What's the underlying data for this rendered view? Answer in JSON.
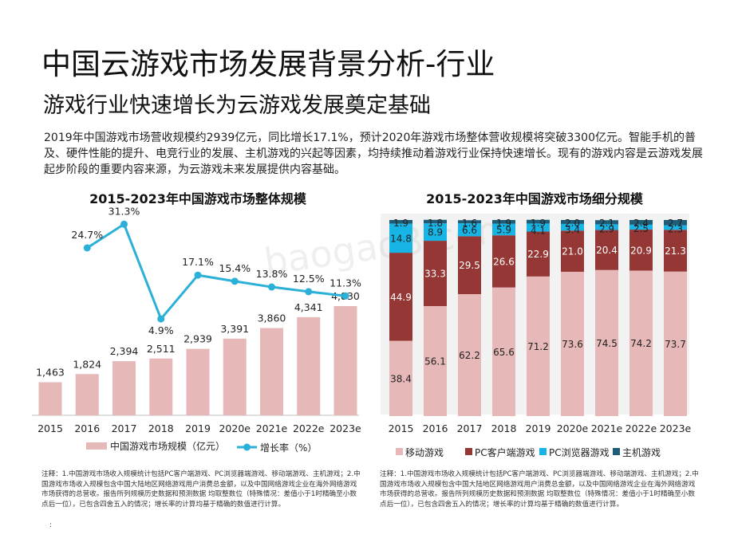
{
  "header": {
    "title": "中国云游戏市场发展背景分析-行业",
    "subtitle": "游戏行业快速增长为云游戏发展奠定基础",
    "intro": "2019年中国游戏市场营收规模约2939亿元，同比增长17.1%，预计2020年游戏市场整体营收规模将突破3300亿元。智能手机的普及、硬件性能的提升、电竞行业的发展、主机游戏的兴起等因素，均持续推动着游戏行业保持快速增长。现有的游戏内容是云游戏发展起步阶段的重要内容来源，为云游戏未来发展提供内容基础。"
  },
  "watermark": "baogao8.com",
  "notes": {
    "left": "注释：1.中国游戏市场收入规模统计包括PC客户端游戏、PC浏览器端游戏、移动端游戏、主机游戏；2.中国游戏市场收入规模包含中国大陆地区网络游戏用户消费总金额，以及中国网络游戏企业在海外网络游戏市场获得的总营收。报告所列规模历史数据和预测数据 均取整数位（特殊情况：差值小于1时精确至小数点后一位），已包含四舍五入的情况；增长率的计算均基于精确的数值进行计算。",
    "left_tail": ":",
    "right": "注释：1.中国游戏市场收入规模统计包括PC客户端游戏、PC浏览器端游戏、移动端游戏、主机游戏；2.中国游戏市场收入规模包含中国大陆地区网络游戏用户消费总金额，以及中国网络游戏企业在海外网络游戏市场获得的总营收。报告所列规模历史数据和预测数据 均取整数位（特殊情况：差值小于1时精确至小数点后一位），已包含四舍五入的情况；增长率的计算均基于精确的数值进行计算。"
  },
  "colors": {
    "bar_pink": "#e6b8b8",
    "line_blue": "#2bb0d8",
    "mobile": "#e6b8b8",
    "pc_client": "#953735",
    "pc_browser": "#17b4e6",
    "console": "#1e5d78"
  },
  "chart_data": [
    {
      "type": "bar",
      "title": "2015-2023年中国游戏市场整体规模",
      "categories": [
        "2015",
        "2016",
        "2017",
        "2018",
        "2019",
        "2020e",
        "2021e",
        "2022e",
        "2023e"
      ],
      "series": [
        {
          "name": "中国游戏市场规模（亿元）",
          "type": "bar",
          "values": [
            1463,
            1824,
            2394,
            2511,
            2939,
            3391,
            3860,
            4341,
            4830
          ],
          "labels": [
            "1,463",
            "1,824",
            "2,394",
            "2,511",
            "2,939",
            "3,391",
            "3,860",
            "4,341",
            "4,830"
          ]
        },
        {
          "name": "增长率（%）",
          "type": "line",
          "values": [
            null,
            24.7,
            31.3,
            4.9,
            17.1,
            15.4,
            13.8,
            12.5,
            11.3
          ],
          "labels": [
            "",
            "24.7%",
            "31.3%",
            "4.9%",
            "17.1%",
            "15.4%",
            "13.8%",
            "12.5%",
            "11.3%"
          ]
        }
      ],
      "legend": "bottom"
    },
    {
      "type": "bar",
      "stacked": true,
      "percent": true,
      "title": "2015-2023年中国游戏市场细分规模",
      "categories": [
        "2015",
        "2016",
        "2017",
        "2018",
        "2019",
        "2020e",
        "2021e",
        "2022e",
        "2023e"
      ],
      "series": [
        {
          "name": "移动游戏",
          "values": [
            38.4,
            56.1,
            62.2,
            65.6,
            71.2,
            73.6,
            74.5,
            74.2,
            73.7
          ]
        },
        {
          "name": "PC客户端游戏",
          "values": [
            44.9,
            33.3,
            29.5,
            26.6,
            22.9,
            21.0,
            20.4,
            20.9,
            21.3
          ]
        },
        {
          "name": "PC浏览器游戏",
          "values": [
            14.8,
            8.9,
            6.6,
            5.9,
            4.1,
            3.4,
            2.9,
            2.5,
            2.3
          ]
        },
        {
          "name": "主机游戏",
          "values": [
            1.9,
            1.8,
            1.6,
            1.9,
            1.9,
            2.0,
            2.1,
            2.4,
            2.7
          ]
        }
      ],
      "ylim": [
        0,
        100
      ],
      "legend": "bottom"
    }
  ]
}
